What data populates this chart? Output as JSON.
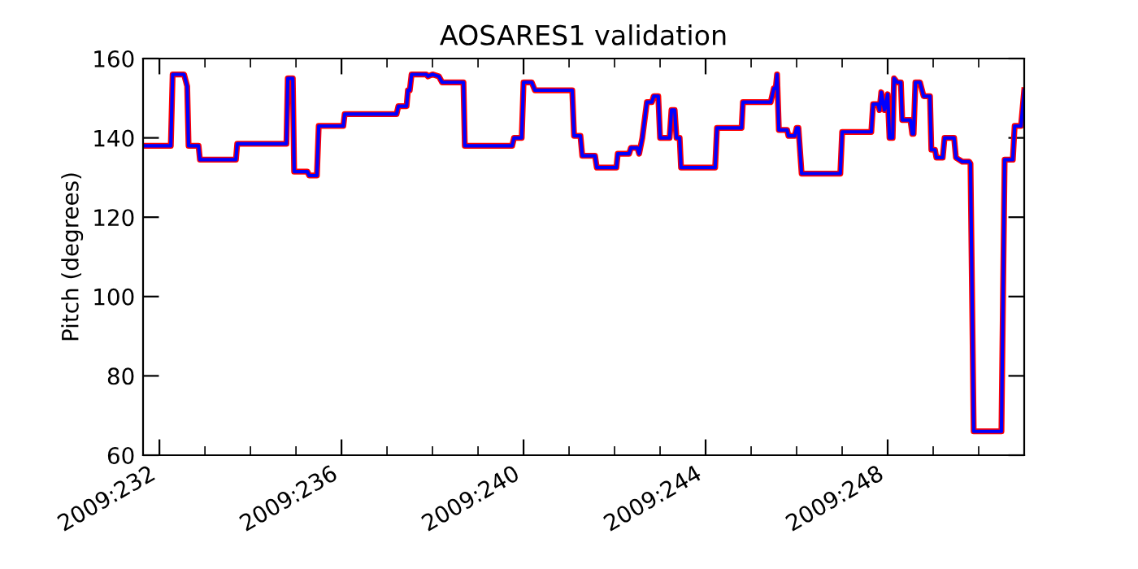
{
  "chart_data": {
    "type": "line",
    "title": "AOSARES1 validation",
    "ylabel": "Pitch (degrees)",
    "x": [
      "2009-08-19T15:22",
      "2009-08-20T06:00",
      "2009-08-20T06:58",
      "2009-08-20T12:58",
      "2009-08-20T14:38",
      "2009-08-20T15:22",
      "2009-08-20T20:38",
      "2009-08-20T21:22",
      "2009-08-21T16:19",
      "2009-08-21T17:02",
      "2009-08-22T18:58",
      "2009-08-22T19:41",
      "2009-08-22T22:19",
      "2009-08-22T23:02",
      "2009-08-23T06:00",
      "2009-08-23T06:58",
      "2009-08-23T11:02",
      "2009-08-23T12:00",
      "2009-08-24T00:58",
      "2009-08-24T01:41",
      "2009-08-25T05:02",
      "2009-08-25T06:00",
      "2009-08-25T10:19",
      "2009-08-25T11:02",
      "2009-08-25T12:00",
      "2009-08-25T12:58",
      "2009-08-25T20:38",
      "2009-08-25T21:36",
      "2009-08-26T00:00",
      "2009-08-26T03:22",
      "2009-08-26T05:02",
      "2009-08-26T16:19",
      "2009-08-26T17:02",
      "2009-08-27T18:00",
      "2009-08-27T18:58",
      "2009-08-27T23:02",
      "2009-08-28T00:00",
      "2009-08-28T04:19",
      "2009-08-28T06:00",
      "2009-08-29T01:41",
      "2009-08-29T02:38",
      "2009-08-29T06:00",
      "2009-08-29T06:58",
      "2009-08-29T13:41",
      "2009-08-29T14:38",
      "2009-08-30T00:58",
      "2009-08-30T01:41",
      "2009-08-30T07:41",
      "2009-08-30T08:38",
      "2009-08-30T12:00",
      "2009-08-30T12:58",
      "2009-08-30T14:38",
      "2009-08-30T17:02",
      "2009-08-30T19:41",
      "2009-08-30T20:38",
      "2009-08-30T23:02",
      "2009-08-31T00:00",
      "2009-08-31T05:02",
      "2009-08-31T06:00",
      "2009-08-31T07:41",
      "2009-08-31T08:38",
      "2009-08-31T10:19",
      "2009-08-31T11:02",
      "2009-09-01T05:02",
      "2009-09-01T06:00",
      "2009-09-01T18:58",
      "2009-09-01T19:41",
      "2009-09-02T10:19",
      "2009-09-02T12:00",
      "2009-09-02T12:58",
      "2009-09-02T13:41",
      "2009-09-02T14:38",
      "2009-09-02T18:58",
      "2009-09-02T19:41",
      "2009-09-02T23:02",
      "2009-09-03T00:00",
      "2009-09-03T00:58",
      "2009-09-03T02:38",
      "2009-09-03T23:02",
      "2009-09-04T00:00",
      "2009-09-04T15:22",
      "2009-09-04T16:19",
      "2009-09-04T18:58",
      "2009-09-04T19:41",
      "2009-09-04T20:38",
      "2009-09-04T22:19",
      "2009-09-05T00:00",
      "2009-09-05T00:58",
      "2009-09-05T02:38",
      "2009-09-05T03:22",
      "2009-09-05T05:02",
      "2009-09-05T06:58",
      "2009-09-05T07:41",
      "2009-09-05T12:00",
      "2009-09-05T12:58",
      "2009-09-05T13:41",
      "2009-09-05T14:38",
      "2009-09-05T17:02",
      "2009-09-05T18:58",
      "2009-09-05T22:19",
      "2009-09-05T23:02",
      "2009-09-06T00:58",
      "2009-09-06T01:41",
      "2009-09-06T05:02",
      "2009-09-06T06:00",
      "2009-09-06T11:02",
      "2009-09-06T12:00",
      "2009-09-06T15:22",
      "2009-09-06T18:58",
      "2009-09-06T19:41",
      "2009-09-06T21:22",
      "2009-09-07T12:00",
      "2009-09-07T13:41",
      "2009-09-07T18:00",
      "2009-09-07T18:58",
      "2009-09-07T22:19",
      "2009-09-08T00:00"
    ],
    "series": [
      {
        "color": "#ff0000",
        "values": [
          138,
          138,
          156,
          156,
          153,
          138,
          138,
          134.5,
          134.5,
          138.5,
          138.5,
          155,
          155,
          131.5,
          131.5,
          130.5,
          130.5,
          143,
          143,
          146,
          146,
          148,
          148,
          152,
          152,
          156,
          156,
          155.5,
          156,
          155.5,
          154,
          154,
          138,
          138,
          140,
          140,
          154,
          154,
          152,
          152,
          140.5,
          140.5,
          135.5,
          135.5,
          132.5,
          132.5,
          136,
          136,
          137.5,
          137.5,
          136,
          140,
          149,
          149,
          150.5,
          150.5,
          140,
          140,
          147,
          147,
          140,
          140,
          132.5,
          132.5,
          142.5,
          142.5,
          149,
          149,
          152.5,
          152.5,
          156,
          142,
          142,
          140.5,
          140.5,
          142.5,
          142.5,
          131,
          131,
          141.5,
          141.5,
          148.5,
          148.5,
          147,
          151.5,
          147,
          151,
          140,
          140,
          155,
          154,
          154,
          144.5,
          144.5,
          141,
          141,
          154,
          154,
          150.5,
          150.5,
          137,
          137,
          135,
          135,
          140,
          140,
          135,
          134,
          134,
          133.5,
          66,
          66,
          134.5,
          134.5,
          143,
          143,
          152
        ]
      },
      {
        "color": "#0000ff",
        "values": [
          138,
          138,
          156,
          156,
          153,
          138,
          138,
          134.5,
          134.5,
          138.5,
          138.5,
          155,
          155,
          131.5,
          131.5,
          130.5,
          130.5,
          143,
          143,
          146,
          146,
          148,
          148,
          152,
          152,
          156,
          156,
          155.5,
          156,
          155.5,
          154,
          154,
          138,
          138,
          140,
          140,
          154,
          154,
          152,
          152,
          140.5,
          140.5,
          135.5,
          135.5,
          132.5,
          132.5,
          136,
          136,
          137.5,
          137.5,
          136,
          140,
          149,
          149,
          150.5,
          150.5,
          140,
          140,
          147,
          147,
          140,
          140,
          132.5,
          132.5,
          142.5,
          142.5,
          149,
          149,
          152.5,
          152.5,
          156,
          142,
          142,
          140.5,
          140.5,
          142.5,
          142.5,
          131,
          131,
          141.5,
          141.5,
          148.5,
          148.5,
          147,
          151.5,
          147,
          151,
          140,
          140,
          155,
          154,
          154,
          144.5,
          144.5,
          141,
          141,
          154,
          154,
          150.5,
          150.5,
          137,
          137,
          135,
          135,
          140,
          140,
          135,
          134,
          134,
          133.5,
          66,
          66,
          134.5,
          134.5,
          143,
          143,
          152
        ]
      }
    ],
    "xlim": [
      "2009-08-19T15:22",
      "2009-09-08"
    ],
    "xticks": [
      {
        "value": "2009-08-20",
        "label": "2009:232"
      },
      {
        "value": "2009-08-21",
        "label": null
      },
      {
        "value": "2009-08-22",
        "label": null
      },
      {
        "value": "2009-08-23",
        "label": null
      },
      {
        "value": "2009-08-24",
        "label": "2009:236"
      },
      {
        "value": "2009-08-25",
        "label": null
      },
      {
        "value": "2009-08-26",
        "label": null
      },
      {
        "value": "2009-08-27",
        "label": null
      },
      {
        "value": "2009-08-28",
        "label": "2009:240"
      },
      {
        "value": "2009-08-29",
        "label": null
      },
      {
        "value": "2009-08-30",
        "label": null
      },
      {
        "value": "2009-08-31",
        "label": null
      },
      {
        "value": "2009-09-01",
        "label": "2009:244"
      },
      {
        "value": "2009-09-02",
        "label": null
      },
      {
        "value": "2009-09-03",
        "label": null
      },
      {
        "value": "2009-09-04",
        "label": null
      },
      {
        "value": "2009-09-05",
        "label": "2009:248"
      },
      {
        "value": "2009-09-06",
        "label": null
      },
      {
        "value": "2009-09-07",
        "label": null
      }
    ],
    "ylim": [
      60,
      160
    ],
    "yticks": [
      60,
      80,
      100,
      120,
      140,
      160
    ],
    "grid": false,
    "legend": false,
    "marker": "none",
    "line_style": "solid"
  }
}
